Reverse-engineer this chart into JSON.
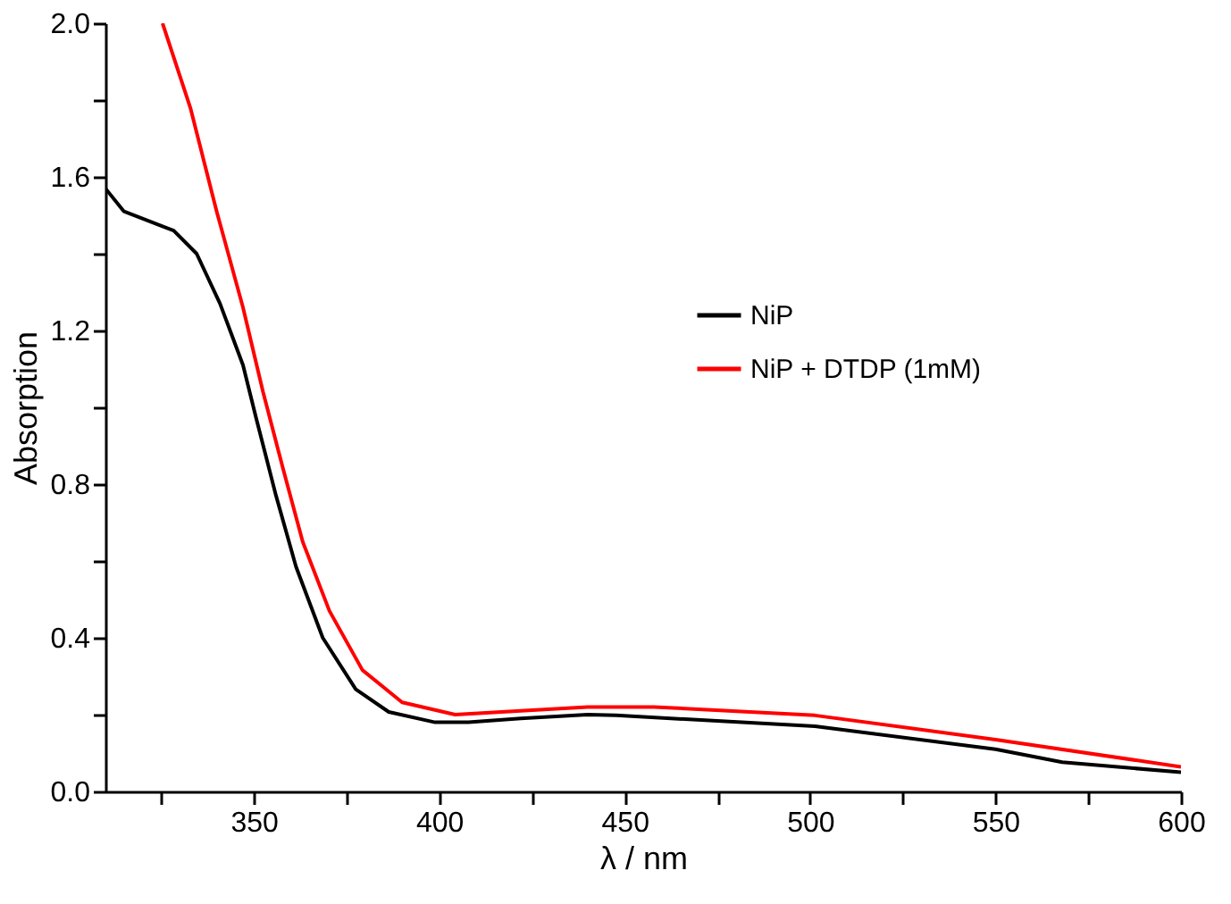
{
  "chart_data": {
    "type": "line",
    "xlabel": "λ / nm",
    "ylabel": "Absorption",
    "xlim": [
      310,
      600
    ],
    "ylim": [
      0,
      2.0
    ],
    "xticks": [
      {
        "value": 325,
        "label": null
      },
      350,
      {
        "value": 375,
        "label": null
      },
      400,
      {
        "value": 425,
        "label": null
      },
      450,
      {
        "value": 475,
        "label": null
      },
      500,
      {
        "value": 525,
        "label": null
      },
      550,
      {
        "value": 575,
        "label": null
      },
      600
    ],
    "yticks": [
      {
        "value": 0,
        "label": "0.0"
      },
      {
        "value": 0.2,
        "label": null
      },
      0.4,
      {
        "value": 0.6,
        "label": null
      },
      0.8,
      {
        "value": 1.0,
        "label": null
      },
      1.2,
      {
        "value": 1.4,
        "label": null
      },
      1.6,
      {
        "value": 1.8,
        "label": null
      },
      {
        "value": 2.0,
        "label": "2.0"
      }
    ],
    "grid": false,
    "legend": "right",
    "line_style": "solid",
    "marker": "none",
    "series": [
      {
        "name": "NiP",
        "color": "#000000",
        "x": [
          310,
          315,
          328.4,
          334.6,
          340.9,
          347.1,
          350.7,
          356,
          361.4,
          368.6,
          377.5,
          386.4,
          398.9,
          407.9,
          422,
          440,
          447.7,
          501.3,
          550,
          568,
          600
        ],
        "values": [
          1.57,
          1.51,
          1.46,
          1.4,
          1.27,
          1.11,
          0.97,
          0.77,
          0.585,
          0.4,
          0.266,
          0.207,
          0.18,
          0.18,
          0.19,
          0.2,
          0.198,
          0.17,
          0.11,
          0.076,
          0.05
        ]
      },
      {
        "name": "NiP + DTDP (1mM)",
        "color": "#ff0000",
        "x": [
          325.4,
          332.9,
          340,
          347.1,
          352.5,
          357.9,
          363.2,
          370.4,
          379.3,
          390,
          404.3,
          422,
          440,
          457.9,
          501.3,
          550,
          600
        ],
        "values": [
          2.0,
          1.78,
          1.51,
          1.26,
          1.04,
          0.84,
          0.65,
          0.47,
          0.316,
          0.232,
          0.2,
          0.21,
          0.22,
          0.22,
          0.198,
          0.135,
          0.064
        ]
      }
    ]
  }
}
